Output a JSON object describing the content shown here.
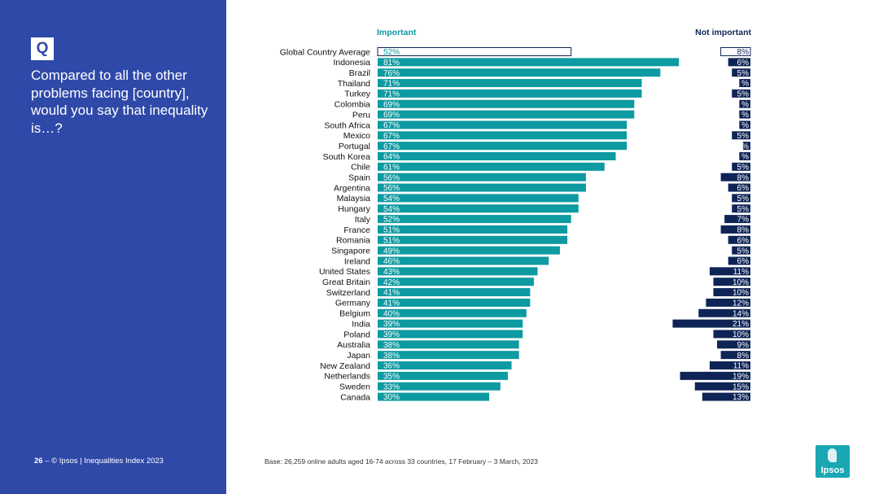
{
  "question": {
    "badge": "Q",
    "text": "Compared to all the other problems facing [country], would you say that inequality is…?"
  },
  "footer": {
    "page_number": "26",
    "separator": "–",
    "source": "© Ipsos | Inequalities Index 2023",
    "base_note": "Base: 26,259 online adults aged 16-74 across 33 countries, 17 February – 3 March, 2023"
  },
  "logo": {
    "text": "Ipsos"
  },
  "colors": {
    "sidebar": "#2f49a8",
    "important": "#0d9aa1",
    "not_important": "#0f2456",
    "average_outline": "#0f2456"
  },
  "chart_data": {
    "type": "bar",
    "orientation": "horizontal",
    "categories": [
      "Global Country Average",
      "Indonesia",
      "Brazil",
      "Thailand",
      "Turkey",
      "Colombia",
      "Peru",
      "South Africa",
      "Mexico",
      "Portugal",
      "South Korea",
      "Chile",
      "Spain",
      "Argentina",
      "Malaysia",
      "Hungary",
      "Italy",
      "France",
      "Romania",
      "Singapore",
      "Ireland",
      "United States",
      "Great Britain",
      "Switzerland",
      "Germany",
      "Belgium",
      "India",
      "Poland",
      "Australia",
      "Japan",
      "New Zealand",
      "Netherlands",
      "Sweden",
      "Canada"
    ],
    "series": [
      {
        "name": "Important",
        "values": [
          52,
          81,
          76,
          71,
          71,
          69,
          69,
          67,
          67,
          67,
          64,
          61,
          56,
          56,
          54,
          54,
          52,
          51,
          51,
          49,
          46,
          43,
          42,
          41,
          41,
          40,
          39,
          39,
          38,
          38,
          36,
          35,
          33,
          30
        ],
        "labels": [
          "52%",
          "81%",
          "76%",
          "71%",
          "71%",
          "69%",
          "69%",
          "67%",
          "67%",
          "67%",
          "64%",
          "61%",
          "56%",
          "56%",
          "54%",
          "54%",
          "52%",
          "51%",
          "51%",
          "49%",
          "46%",
          "43%",
          "42%",
          "41%",
          "41%",
          "40%",
          "39%",
          "39%",
          "38%",
          "38%",
          "36%",
          "35%",
          "33%",
          "30%"
        ]
      },
      {
        "name": "Not important",
        "values": [
          8,
          6,
          5,
          3,
          5,
          3,
          3,
          3,
          5,
          2,
          3,
          5,
          8,
          6,
          5,
          5,
          7,
          8,
          6,
          5,
          6,
          11,
          10,
          10,
          12,
          14,
          21,
          10,
          9,
          8,
          11,
          19,
          15,
          13
        ],
        "labels": [
          "8%",
          "6%",
          "5%",
          "%",
          "5%",
          "%",
          "%",
          "%",
          "5%",
          "%",
          "%",
          "5%",
          "8%",
          "6%",
          "5%",
          "5%",
          "7%",
          "8%",
          "6%",
          "5%",
          "6%",
          "11%",
          "10%",
          "10%",
          "12%",
          "14%",
          "21%",
          "10%",
          "9%",
          "8%",
          "11%",
          "19%",
          "15%",
          "13%"
        ]
      }
    ],
    "highlight_category": "Global Country Average"
  }
}
